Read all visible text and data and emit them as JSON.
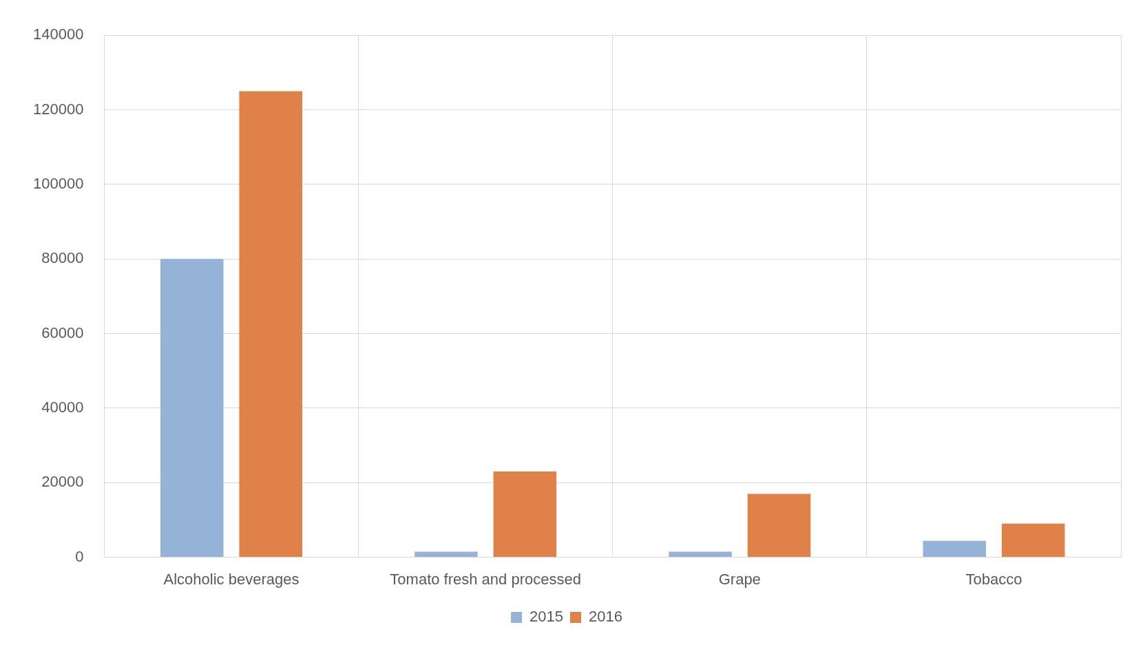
{
  "chart_data": {
    "type": "bar",
    "categories": [
      "Alcoholic beverages",
      "Tomato fresh and processed",
      "Grape",
      "Tobacco"
    ],
    "series": [
      {
        "name": "2015",
        "color": "#95b3d7",
        "values": [
          80000,
          1500,
          1500,
          4400
        ]
      },
      {
        "name": "2016",
        "color": "#e0814a",
        "values": [
          125000,
          23000,
          17000,
          9000
        ]
      }
    ],
    "ylim": [
      0,
      140000
    ],
    "yticks": [
      0,
      20000,
      40000,
      60000,
      80000,
      100000,
      120000,
      140000
    ],
    "grid": true,
    "legend": "bottom"
  }
}
